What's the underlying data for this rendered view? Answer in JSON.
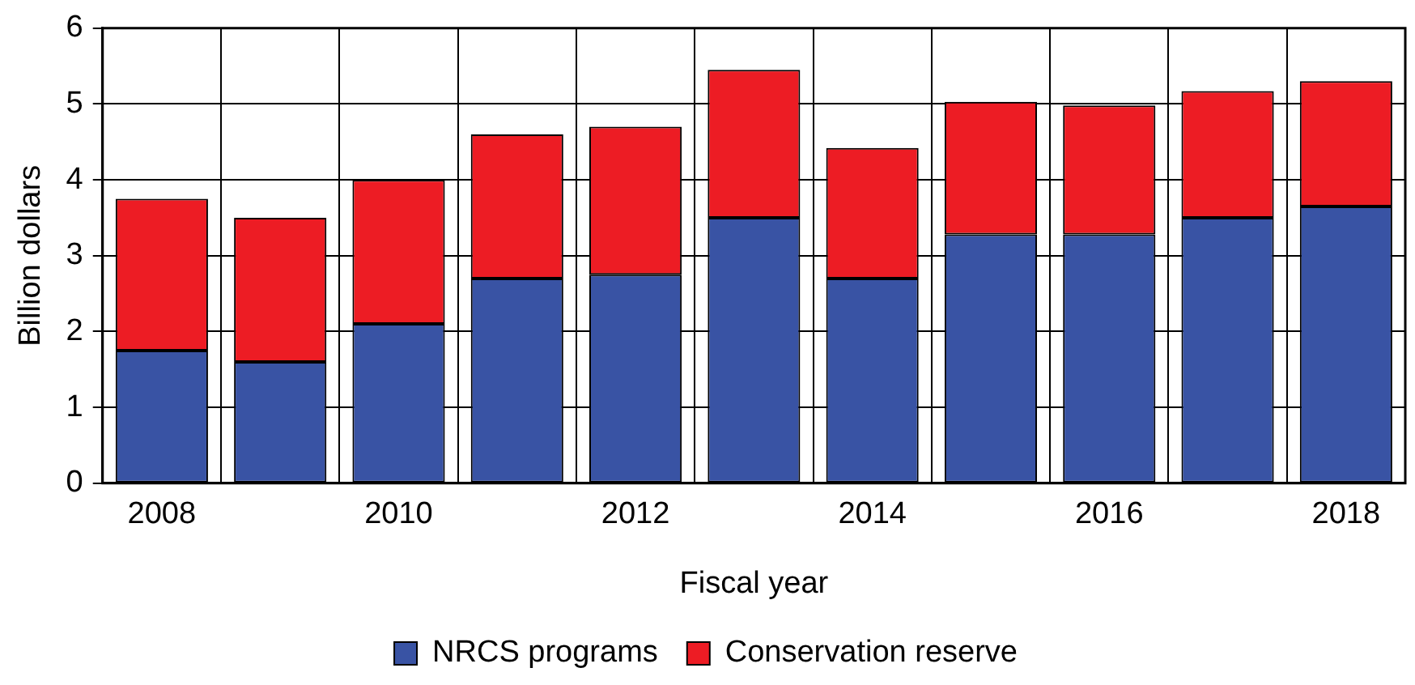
{
  "chart_data": {
    "type": "bar",
    "stacked": true,
    "xlabel": "Fiscal year",
    "ylabel": "Billion dollars",
    "categories": [
      "2008",
      null,
      "2010",
      null,
      "2012",
      null,
      "2014",
      null,
      "2016",
      null,
      "2018"
    ],
    "series": [
      {
        "name": "NRCS programs",
        "color": "#3953a4",
        "values": [
          1.75,
          1.6,
          2.1,
          2.7,
          2.75,
          3.5,
          2.7,
          3.28,
          3.28,
          3.5,
          3.65
        ]
      },
      {
        "name": "Conservation reserve",
        "color": "#ed1c24",
        "values": [
          2.0,
          1.9,
          1.9,
          1.9,
          1.95,
          1.95,
          1.72,
          1.75,
          1.7,
          1.67,
          1.65
        ]
      }
    ],
    "ylim": [
      0,
      6
    ],
    "yticks": [
      0,
      1,
      2,
      3,
      4,
      5,
      6
    ],
    "grid": true,
    "legend": "bottom"
  }
}
